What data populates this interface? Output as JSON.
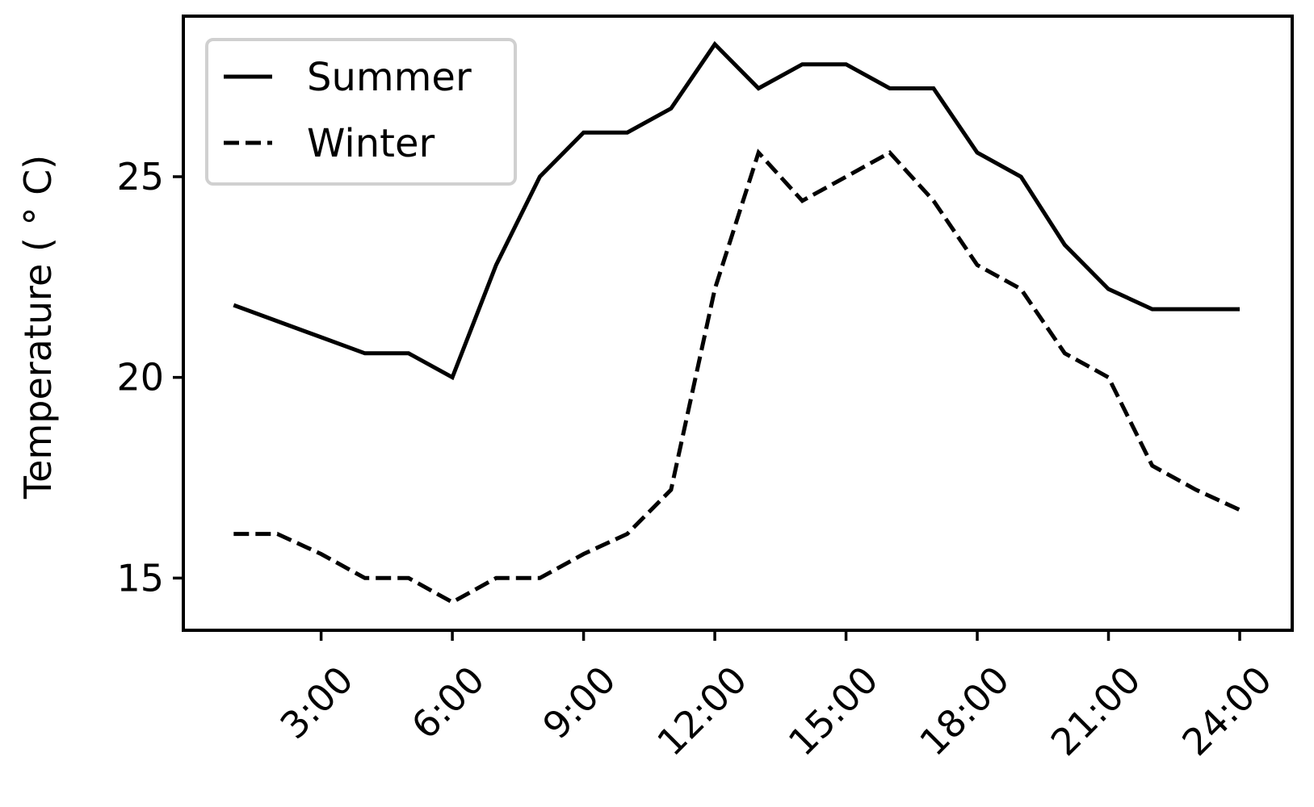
{
  "chart_data": {
    "type": "line",
    "title": "",
    "xlabel": "",
    "ylabel": "Temperature ( $^\\circ$C)",
    "ylabel_display": "Temperature ( ° C)",
    "x": [
      1,
      2,
      3,
      4,
      5,
      6,
      7,
      8,
      9,
      10,
      11,
      12,
      13,
      14,
      15,
      16,
      17,
      18,
      19,
      20,
      21,
      22,
      23,
      24
    ],
    "xticks": [
      3,
      6,
      9,
      12,
      15,
      18,
      21,
      24
    ],
    "xtick_labels": [
      "3:00",
      "6:00",
      "9:00",
      "12:00",
      "15:00",
      "18:00",
      "21:00",
      "24:00"
    ],
    "xtick_rotation": 45,
    "xlim": [
      -0.15,
      25.2
    ],
    "yticks": [
      15,
      20,
      25
    ],
    "ytick_labels": [
      "15",
      "20",
      "25"
    ],
    "ylim": [
      13.7,
      29.0
    ],
    "grid": false,
    "legend_position": "upper-left",
    "series": [
      {
        "name": "Summer",
        "linestyle": "solid",
        "color": "#000000",
        "values": [
          21.8,
          21.4,
          21.0,
          20.6,
          20.6,
          20.0,
          22.8,
          25.0,
          26.1,
          26.1,
          26.7,
          28.3,
          27.2,
          27.8,
          27.8,
          27.2,
          27.2,
          25.6,
          25.0,
          23.3,
          22.2,
          21.7,
          21.7,
          21.7
        ]
      },
      {
        "name": "Winter",
        "linestyle": "dashed",
        "color": "#000000",
        "values": [
          16.1,
          16.1,
          15.6,
          15.0,
          15.0,
          14.4,
          15.0,
          15.0,
          15.6,
          16.1,
          17.2,
          22.2,
          25.6,
          24.4,
          25.0,
          25.6,
          24.4,
          22.8,
          22.2,
          20.6,
          20.0,
          17.8,
          17.2,
          16.7
        ]
      }
    ]
  }
}
